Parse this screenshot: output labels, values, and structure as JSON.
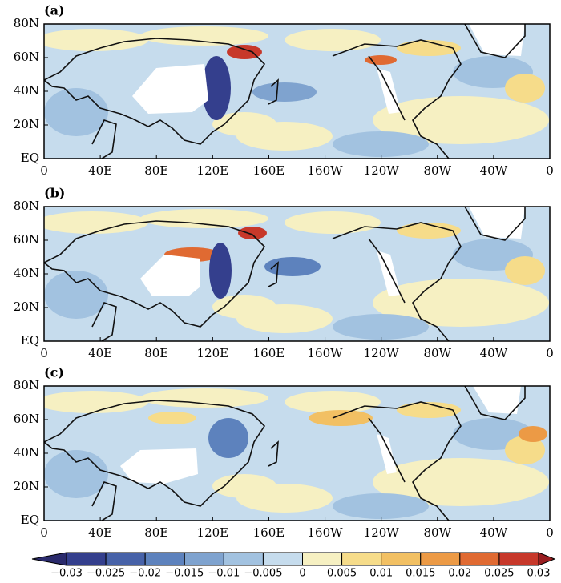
{
  "panels": [
    {
      "label": "(a)"
    },
    {
      "label": "(b)"
    },
    {
      "label": "(c)"
    }
  ],
  "yticks": [
    "80N",
    "60N",
    "40N",
    "20N",
    "EQ"
  ],
  "xticks": [
    "0",
    "40E",
    "80E",
    "120E",
    "160E",
    "160W",
    "120W",
    "80W",
    "40W",
    "0"
  ],
  "colorbar": {
    "ticks": [
      {
        "value": -0.03,
        "label": "−0.03"
      },
      {
        "value": -0.025,
        "label": "−0.025"
      },
      {
        "value": -0.02,
        "label": "−0.02"
      },
      {
        "value": -0.015,
        "label": "−0.015"
      },
      {
        "value": -0.01,
        "label": "−0.01"
      },
      {
        "value": -0.005,
        "label": "−0.005"
      },
      0,
      0.005,
      0.01,
      0.015,
      0.02,
      0.025,
      0.03
    ],
    "colors": [
      "#2a2a6c",
      "#343f8d",
      "#4762a8",
      "#5d82bd",
      "#7fa3cf",
      "#a2c2e0",
      "#c6dced",
      "#f6f0c2",
      "#f6dc8a",
      "#f2c063",
      "#ec9a45",
      "#e06a32",
      "#c7382a",
      "#9a1d20"
    ]
  }
}
